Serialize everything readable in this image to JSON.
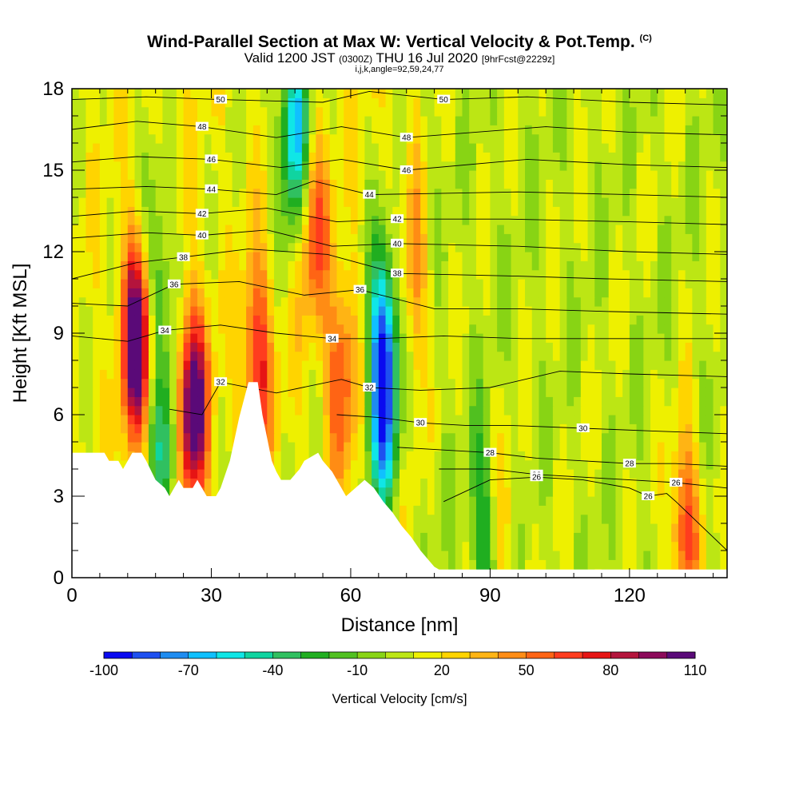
{
  "title": {
    "main": "Wind-Parallel Section at Max W: Vertical Velocity & Pot.Temp.",
    "copyright": "(C)",
    "valid_prefix": "Valid 1200 JST",
    "valid_utc": "(0300Z)",
    "valid_date": "THU 16 Jul 2020",
    "forecast": "[9hrFcst@2229z]",
    "indices": "i,j,k,angle=92,59,24,77"
  },
  "chart_data": {
    "type": "heatmap",
    "xlabel": "Distance [nm]",
    "ylabel": "Height [Kft MSL]",
    "xlim": [
      0,
      141
    ],
    "ylim": [
      0,
      18
    ],
    "x_ticks": [
      0,
      30,
      60,
      90,
      120
    ],
    "y_ticks": [
      0,
      3,
      6,
      9,
      12,
      15,
      18
    ],
    "colorbar": {
      "label": "Vertical Velocity [cm/s]",
      "tick_labels": [
        "-100",
        "-70",
        "-40",
        "-10",
        "20",
        "50",
        "80",
        "110"
      ],
      "tick_values": [
        -100,
        -70,
        -40,
        -10,
        20,
        50,
        80,
        110
      ],
      "min": -100,
      "max": 120,
      "step": 10,
      "colors": [
        "#0a0af0",
        "#1e50f0",
        "#1e8cf0",
        "#10c0ff",
        "#10e6e6",
        "#10d4a0",
        "#30c060",
        "#20ae20",
        "#50c020",
        "#88d414",
        "#bce614",
        "#eef000",
        "#ffd400",
        "#ffb414",
        "#ff8c14",
        "#ff6414",
        "#ff3c1e",
        "#e61414",
        "#b4143c",
        "#8c0a5a",
        "#5a0a78"
      ]
    },
    "terrain": [
      [
        0,
        4.6
      ],
      [
        7,
        4.6
      ],
      [
        8,
        4.3
      ],
      [
        10,
        4.3
      ],
      [
        11,
        4.0
      ],
      [
        13,
        4.6
      ],
      [
        15,
        4.6
      ],
      [
        16,
        4.3
      ],
      [
        18,
        3.6
      ],
      [
        20,
        3.3
      ],
      [
        21,
        3.0
      ],
      [
        22,
        3.3
      ],
      [
        23,
        3.6
      ],
      [
        24,
        3.3
      ],
      [
        26,
        3.3
      ],
      [
        27,
        3.6
      ],
      [
        28,
        3.3
      ],
      [
        29,
        3.0
      ],
      [
        31,
        3.0
      ],
      [
        32,
        3.3
      ],
      [
        34,
        4.3
      ],
      [
        36,
        5.9
      ],
      [
        38,
        7.2
      ],
      [
        40,
        7.2
      ],
      [
        41,
        6.0
      ],
      [
        43,
        4.3
      ],
      [
        44,
        3.9
      ],
      [
        45,
        3.6
      ],
      [
        47,
        3.6
      ],
      [
        49,
        4.0
      ],
      [
        50,
        4.3
      ],
      [
        53,
        4.6
      ],
      [
        54,
        4.3
      ],
      [
        56,
        3.9
      ],
      [
        57,
        3.6
      ],
      [
        58,
        3.3
      ],
      [
        59,
        3.0
      ],
      [
        61,
        3.3
      ],
      [
        63,
        3.6
      ],
      [
        65,
        3.3
      ],
      [
        67,
        2.8
      ],
      [
        69,
        2.4
      ],
      [
        71,
        1.9
      ],
      [
        73,
        1.5
      ],
      [
        75,
        1.0
      ],
      [
        77,
        0.6
      ],
      [
        78,
        0.4
      ],
      [
        79,
        0.3
      ],
      [
        141,
        0.3
      ]
    ],
    "updrafts": [
      {
        "x": 14,
        "y": 8.8,
        "w": 125
      },
      {
        "x": 26,
        "y": 6.2,
        "w": 115
      },
      {
        "x": 40,
        "y": 8.0,
        "w": 70
      },
      {
        "x": 52,
        "y": 13.0,
        "w": 60
      },
      {
        "x": 58,
        "y": 7.5,
        "w": 60
      },
      {
        "x": 74,
        "y": 11.0,
        "w": 40
      },
      {
        "x": 92,
        "y": 2.0,
        "w": 40
      },
      {
        "x": 132,
        "y": 1.8,
        "w": 70
      }
    ],
    "downdrafts": [
      {
        "x": 20,
        "y": 4.5,
        "w": -45
      },
      {
        "x": 48,
        "y": 16.5,
        "w": -75
      },
      {
        "x": 67,
        "y": 9.0,
        "w": -70
      },
      {
        "x": 67,
        "y": 5.5,
        "w": -60
      },
      {
        "x": 89,
        "y": 2.0,
        "w": -35
      },
      {
        "x": 18,
        "y": 11.0,
        "w": -35
      }
    ],
    "theta_contours": [
      {
        "label": "26",
        "values": [
          [
            79,
            4.0
          ],
          [
            90,
            4.0
          ],
          [
            100,
            3.8
          ],
          [
            110,
            3.7
          ],
          [
            120,
            3.6
          ],
          [
            130,
            3.5
          ],
          [
            141,
            3.3
          ]
        ]
      },
      {
        "label": "26",
        "values": [
          [
            80,
            2.8
          ],
          [
            90,
            3.6
          ],
          [
            100,
            3.7
          ],
          [
            110,
            3.6
          ],
          [
            120,
            3.3
          ],
          [
            124,
            3.0
          ],
          [
            128,
            3.1
          ],
          [
            130,
            2.8
          ],
          [
            141,
            1.0
          ]
        ]
      },
      {
        "label": "28",
        "values": [
          [
            70,
            4.8
          ],
          [
            80,
            4.7
          ],
          [
            90,
            4.6
          ],
          [
            100,
            4.4
          ],
          [
            110,
            4.3
          ],
          [
            120,
            4.2
          ],
          [
            130,
            4.2
          ],
          [
            141,
            4.1
          ]
        ]
      },
      {
        "label": "30",
        "values": [
          [
            57,
            6.0
          ],
          [
            66,
            5.9
          ],
          [
            75,
            5.7
          ],
          [
            85,
            5.6
          ],
          [
            95,
            5.6
          ],
          [
            110,
            5.5
          ],
          [
            125,
            5.4
          ],
          [
            141,
            5.3
          ]
        ]
      },
      {
        "label": "32",
        "values": [
          [
            21,
            6.2
          ],
          [
            28,
            6.0
          ],
          [
            32,
            7.2
          ],
          [
            44,
            6.8
          ],
          [
            58,
            7.3
          ],
          [
            64,
            7.0
          ],
          [
            75,
            6.9
          ],
          [
            90,
            7.0
          ],
          [
            105,
            7.6
          ],
          [
            120,
            7.5
          ],
          [
            141,
            7.4
          ]
        ]
      },
      {
        "label": "34",
        "values": [
          [
            0,
            8.9
          ],
          [
            12,
            8.7
          ],
          [
            20,
            9.1
          ],
          [
            32,
            9.3
          ],
          [
            44,
            9.0
          ],
          [
            56,
            8.8
          ],
          [
            66,
            8.8
          ],
          [
            80,
            8.9
          ],
          [
            97,
            8.8
          ],
          [
            115,
            8.8
          ],
          [
            141,
            8.8
          ]
        ]
      },
      {
        "label": "36",
        "values": [
          [
            0,
            10.1
          ],
          [
            12,
            10.0
          ],
          [
            22,
            10.8
          ],
          [
            36,
            10.9
          ],
          [
            50,
            10.4
          ],
          [
            62,
            10.6
          ],
          [
            78,
            9.9
          ],
          [
            96,
            9.9
          ],
          [
            115,
            9.8
          ],
          [
            141,
            9.7
          ]
        ]
      },
      {
        "label": "38",
        "values": [
          [
            0,
            11.0
          ],
          [
            14,
            11.6
          ],
          [
            24,
            11.8
          ],
          [
            38,
            12.1
          ],
          [
            55,
            11.9
          ],
          [
            70,
            11.2
          ],
          [
            96,
            11.1
          ],
          [
            115,
            11.0
          ],
          [
            141,
            10.9
          ]
        ]
      },
      {
        "label": "40",
        "values": [
          [
            0,
            12.5
          ],
          [
            16,
            12.7
          ],
          [
            28,
            12.6
          ],
          [
            42,
            12.8
          ],
          [
            56,
            12.2
          ],
          [
            70,
            12.3
          ],
          [
            96,
            12.2
          ],
          [
            120,
            12.0
          ],
          [
            141,
            11.9
          ]
        ]
      },
      {
        "label": "42",
        "values": [
          [
            0,
            13.3
          ],
          [
            14,
            13.5
          ],
          [
            28,
            13.4
          ],
          [
            42,
            13.6
          ],
          [
            57,
            13.1
          ],
          [
            70,
            13.2
          ],
          [
            94,
            13.2
          ],
          [
            120,
            13.1
          ],
          [
            141,
            13.0
          ]
        ]
      },
      {
        "label": "44",
        "values": [
          [
            0,
            14.3
          ],
          [
            16,
            14.4
          ],
          [
            30,
            14.3
          ],
          [
            44,
            14.1
          ],
          [
            52,
            14.6
          ],
          [
            64,
            14.1
          ],
          [
            96,
            14.2
          ],
          [
            120,
            14.1
          ],
          [
            141,
            14.0
          ]
        ]
      },
      {
        "label": "46",
        "values": [
          [
            0,
            15.3
          ],
          [
            14,
            15.5
          ],
          [
            30,
            15.4
          ],
          [
            45,
            15.1
          ],
          [
            58,
            15.4
          ],
          [
            72,
            15.0
          ],
          [
            98,
            15.4
          ],
          [
            120,
            15.2
          ],
          [
            141,
            15.1
          ]
        ]
      },
      {
        "label": "48",
        "values": [
          [
            0,
            16.5
          ],
          [
            14,
            16.8
          ],
          [
            28,
            16.6
          ],
          [
            44,
            16.2
          ],
          [
            58,
            16.6
          ],
          [
            72,
            16.2
          ],
          [
            102,
            16.6
          ],
          [
            120,
            16.4
          ],
          [
            141,
            16.3
          ]
        ]
      },
      {
        "label": "50",
        "values": [
          [
            0,
            17.6
          ],
          [
            16,
            17.7
          ],
          [
            32,
            17.6
          ],
          [
            54,
            17.5
          ],
          [
            64,
            17.9
          ],
          [
            80,
            17.6
          ],
          [
            98,
            17.7
          ],
          [
            120,
            17.5
          ],
          [
            141,
            17.4
          ]
        ]
      }
    ]
  }
}
